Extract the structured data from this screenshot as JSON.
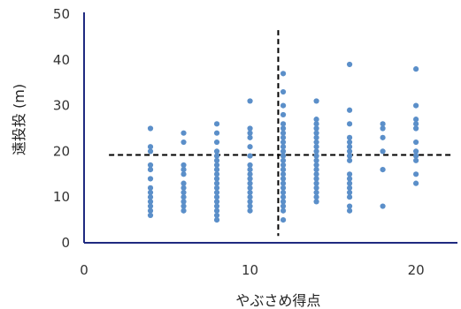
{
  "chart_data": {
    "type": "scatter",
    "title": "",
    "xlabel": "やぶさめ得点",
    "ylabel": "遠投投 (m)",
    "xlim": [
      0,
      22.5
    ],
    "ylim": [
      0,
      50
    ],
    "xticks": [
      0,
      10,
      20
    ],
    "yticks": [
      0,
      10,
      20,
      30,
      40,
      50
    ],
    "grid": false,
    "legend": "none",
    "colors": {
      "points": "#5b8fc9",
      "axis": "#1f2a80",
      "reference_lines": "#000000"
    },
    "reference_lines": {
      "vertical_x": 11.7,
      "horizontal_y": 19.2
    },
    "series": [
      {
        "points": [
          [
            4,
            25
          ],
          [
            4,
            21
          ],
          [
            4,
            20
          ],
          [
            4,
            17
          ],
          [
            4,
            16
          ],
          [
            4,
            14
          ],
          [
            4,
            12
          ],
          [
            4,
            11
          ],
          [
            4,
            10
          ],
          [
            4,
            9
          ],
          [
            4,
            8
          ],
          [
            4,
            7
          ],
          [
            4,
            6
          ],
          [
            6,
            24
          ],
          [
            6,
            22
          ],
          [
            6,
            17
          ],
          [
            6,
            16
          ],
          [
            6,
            15
          ],
          [
            6,
            13
          ],
          [
            6,
            12
          ],
          [
            6,
            11
          ],
          [
            6,
            10
          ],
          [
            6,
            9
          ],
          [
            6,
            8
          ],
          [
            6,
            7
          ],
          [
            8,
            26
          ],
          [
            8,
            24
          ],
          [
            8,
            22
          ],
          [
            8,
            20
          ],
          [
            8,
            19
          ],
          [
            8,
            18
          ],
          [
            8,
            17
          ],
          [
            8,
            16
          ],
          [
            8,
            15
          ],
          [
            8,
            14
          ],
          [
            8,
            13
          ],
          [
            8,
            12
          ],
          [
            8,
            11
          ],
          [
            8,
            10
          ],
          [
            8,
            9
          ],
          [
            8,
            8
          ],
          [
            8,
            7
          ],
          [
            8,
            6
          ],
          [
            8,
            5
          ],
          [
            10,
            31
          ],
          [
            10,
            25
          ],
          [
            10,
            24
          ],
          [
            10,
            23
          ],
          [
            10,
            21
          ],
          [
            10,
            19
          ],
          [
            10,
            17
          ],
          [
            10,
            16
          ],
          [
            10,
            15
          ],
          [
            10,
            14
          ],
          [
            10,
            13
          ],
          [
            10,
            12
          ],
          [
            10,
            11
          ],
          [
            10,
            10
          ],
          [
            10,
            9
          ],
          [
            10,
            8
          ],
          [
            10,
            7
          ],
          [
            12,
            37
          ],
          [
            12,
            33
          ],
          [
            12,
            30
          ],
          [
            12,
            28
          ],
          [
            12,
            26
          ],
          [
            12,
            25
          ],
          [
            12,
            24
          ],
          [
            12,
            23
          ],
          [
            12,
            22
          ],
          [
            12,
            21
          ],
          [
            12,
            20
          ],
          [
            12,
            19
          ],
          [
            12,
            18
          ],
          [
            12,
            17
          ],
          [
            12,
            16
          ],
          [
            12,
            15
          ],
          [
            12,
            14
          ],
          [
            12,
            13
          ],
          [
            12,
            12
          ],
          [
            12,
            11
          ],
          [
            12,
            10
          ],
          [
            12,
            9
          ],
          [
            12,
            8
          ],
          [
            12,
            7
          ],
          [
            12,
            5
          ],
          [
            14,
            31
          ],
          [
            14,
            27
          ],
          [
            14,
            26
          ],
          [
            14,
            25
          ],
          [
            14,
            24
          ],
          [
            14,
            23
          ],
          [
            14,
            22
          ],
          [
            14,
            21
          ],
          [
            14,
            20
          ],
          [
            14,
            19
          ],
          [
            14,
            18
          ],
          [
            14,
            17
          ],
          [
            14,
            16
          ],
          [
            14,
            15
          ],
          [
            14,
            14
          ],
          [
            14,
            13
          ],
          [
            14,
            12
          ],
          [
            14,
            11
          ],
          [
            14,
            10
          ],
          [
            14,
            9
          ],
          [
            16,
            39
          ],
          [
            16,
            29
          ],
          [
            16,
            26
          ],
          [
            16,
            23
          ],
          [
            16,
            22
          ],
          [
            16,
            21
          ],
          [
            16,
            20
          ],
          [
            16,
            19
          ],
          [
            16,
            18
          ],
          [
            16,
            15
          ],
          [
            16,
            14
          ],
          [
            16,
            13
          ],
          [
            16,
            12
          ],
          [
            16,
            11
          ],
          [
            16,
            10
          ],
          [
            16,
            8
          ],
          [
            16,
            7
          ],
          [
            18,
            26
          ],
          [
            18,
            25
          ],
          [
            18,
            23
          ],
          [
            18,
            20
          ],
          [
            18,
            16
          ],
          [
            18,
            8
          ],
          [
            20,
            38
          ],
          [
            20,
            30
          ],
          [
            20,
            27
          ],
          [
            20,
            26
          ],
          [
            20,
            25
          ],
          [
            20,
            22
          ],
          [
            20,
            20
          ],
          [
            20,
            19
          ],
          [
            20,
            18
          ],
          [
            20,
            15
          ],
          [
            20,
            13
          ]
        ]
      }
    ]
  }
}
